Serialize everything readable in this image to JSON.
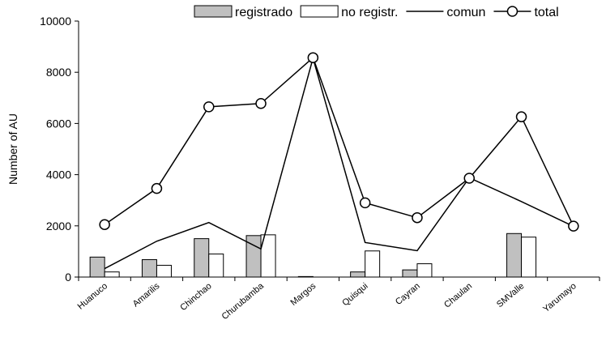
{
  "chart_data": {
    "type": "bar",
    "categories": [
      "Huanuco",
      "Amarilis",
      "Chinchao",
      "Churubamba",
      "Margos",
      "Quisqui",
      "Cayran",
      "Chaulan",
      "SMValle",
      "Yarumayo"
    ],
    "series": [
      {
        "name": "registrado",
        "kind": "bar",
        "fill": "#c0c0c0",
        "values": [
          780,
          680,
          1500,
          1620,
          20,
          200,
          280,
          0,
          1700,
          0
        ]
      },
      {
        "name": "no registr.",
        "kind": "bar",
        "fill": "#ffffff",
        "values": [
          200,
          460,
          900,
          1650,
          0,
          1020,
          520,
          0,
          1560,
          0
        ]
      },
      {
        "name": "comun",
        "kind": "line",
        "values": [
          330,
          1400,
          2130,
          1100,
          8550,
          1350,
          1030,
          3880,
          2950,
          1980
        ]
      },
      {
        "name": "total",
        "kind": "line-marker",
        "values": [
          2050,
          3460,
          6650,
          6780,
          8570,
          2900,
          2320,
          3860,
          6260,
          1990
        ]
      }
    ],
    "ylabel": "Number of AU",
    "xlabel": "",
    "ylim": [
      0,
      10000
    ],
    "yticks": [
      0,
      2000,
      4000,
      6000,
      8000,
      10000
    ],
    "legend_position": "top",
    "grid": false
  }
}
